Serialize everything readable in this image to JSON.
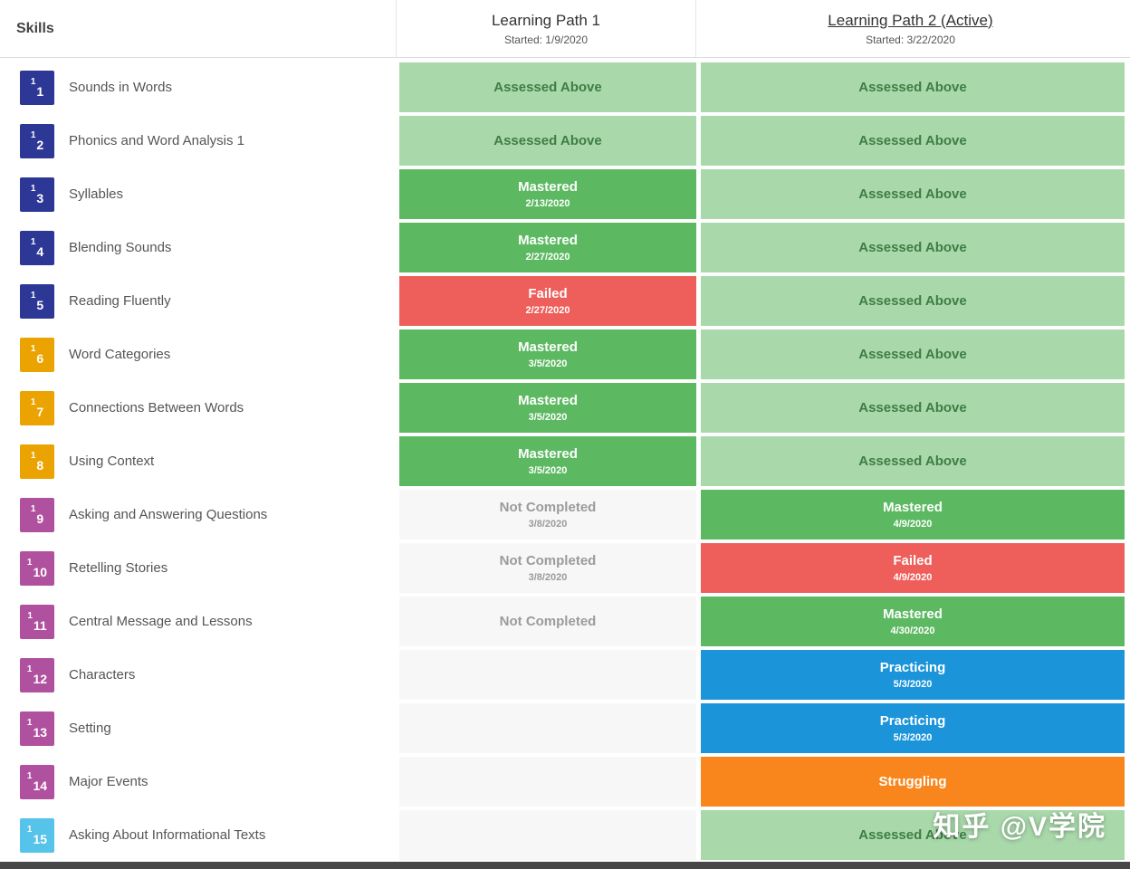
{
  "header": {
    "skills_label": "Skills",
    "path1": {
      "title": "Learning Path 1",
      "started": "Started: 1/9/2020"
    },
    "path2": {
      "title": "Learning Path 2 (Active)",
      "started": "Started: 3/22/2020"
    }
  },
  "status_styles": {
    "assessed": {
      "bg": "#a9d9ab",
      "fg": "#3f7d44"
    },
    "mastered": {
      "bg": "#5cb961",
      "fg": "#ffffff"
    },
    "failed": {
      "bg": "#ee5f5c",
      "fg": "#ffffff"
    },
    "not_completed": {
      "bg": "#f7f7f7",
      "fg": "#9b9b9b"
    },
    "practicing": {
      "bg": "#1b94da",
      "fg": "#ffffff"
    },
    "struggling": {
      "bg": "#f8861c",
      "fg": "#ffffff"
    },
    "empty": {
      "bg": "#f7f7f7",
      "fg": "#9b9b9b"
    }
  },
  "badge_colors": {
    "navy": "#2d3795",
    "gold": "#eaa300",
    "purple": "#b0519f",
    "lightblue": "#56c3ea"
  },
  "rows": [
    {
      "level": "1",
      "number": "1",
      "name": "Sounds in Words",
      "badge_color": "#2d3795",
      "path1": {
        "type": "assessed",
        "label": "Assessed Above",
        "date": ""
      },
      "path2": {
        "type": "assessed",
        "label": "Assessed Above",
        "date": ""
      }
    },
    {
      "level": "1",
      "number": "2",
      "name": "Phonics and Word Analysis 1",
      "badge_color": "#2d3795",
      "path1": {
        "type": "assessed",
        "label": "Assessed Above",
        "date": ""
      },
      "path2": {
        "type": "assessed",
        "label": "Assessed Above",
        "date": ""
      }
    },
    {
      "level": "1",
      "number": "3",
      "name": "Syllables",
      "badge_color": "#2d3795",
      "path1": {
        "type": "mastered",
        "label": "Mastered",
        "date": "2/13/2020"
      },
      "path2": {
        "type": "assessed",
        "label": "Assessed Above",
        "date": ""
      }
    },
    {
      "level": "1",
      "number": "4",
      "name": "Blending Sounds",
      "badge_color": "#2d3795",
      "path1": {
        "type": "mastered",
        "label": "Mastered",
        "date": "2/27/2020"
      },
      "path2": {
        "type": "assessed",
        "label": "Assessed Above",
        "date": ""
      }
    },
    {
      "level": "1",
      "number": "5",
      "name": "Reading Fluently",
      "badge_color": "#2d3795",
      "path1": {
        "type": "failed",
        "label": "Failed",
        "date": "2/27/2020"
      },
      "path2": {
        "type": "assessed",
        "label": "Assessed Above",
        "date": ""
      }
    },
    {
      "level": "1",
      "number": "6",
      "name": "Word Categories",
      "badge_color": "#eaa300",
      "path1": {
        "type": "mastered",
        "label": "Mastered",
        "date": "3/5/2020"
      },
      "path2": {
        "type": "assessed",
        "label": "Assessed Above",
        "date": ""
      }
    },
    {
      "level": "1",
      "number": "7",
      "name": "Connections Between Words",
      "badge_color": "#eaa300",
      "path1": {
        "type": "mastered",
        "label": "Mastered",
        "date": "3/5/2020"
      },
      "path2": {
        "type": "assessed",
        "label": "Assessed Above",
        "date": ""
      }
    },
    {
      "level": "1",
      "number": "8",
      "name": "Using Context",
      "badge_color": "#eaa300",
      "path1": {
        "type": "mastered",
        "label": "Mastered",
        "date": "3/5/2020"
      },
      "path2": {
        "type": "assessed",
        "label": "Assessed Above",
        "date": ""
      }
    },
    {
      "level": "1",
      "number": "9",
      "name": "Asking and Answering Questions",
      "badge_color": "#b0519f",
      "path1": {
        "type": "not_completed",
        "label": "Not Completed",
        "date": "3/8/2020"
      },
      "path2": {
        "type": "mastered",
        "label": "Mastered",
        "date": "4/9/2020"
      }
    },
    {
      "level": "1",
      "number": "10",
      "name": "Retelling Stories",
      "badge_color": "#b0519f",
      "path1": {
        "type": "not_completed",
        "label": "Not Completed",
        "date": "3/8/2020"
      },
      "path2": {
        "type": "failed",
        "label": "Failed",
        "date": "4/9/2020"
      }
    },
    {
      "level": "1",
      "number": "11",
      "name": "Central Message and Lessons",
      "badge_color": "#b0519f",
      "path1": {
        "type": "not_completed",
        "label": "Not Completed",
        "date": ""
      },
      "path2": {
        "type": "mastered",
        "label": "Mastered",
        "date": "4/30/2020"
      }
    },
    {
      "level": "1",
      "number": "12",
      "name": "Characters",
      "badge_color": "#b0519f",
      "path1": {
        "type": "empty",
        "label": "",
        "date": ""
      },
      "path2": {
        "type": "practicing",
        "label": "Practicing",
        "date": "5/3/2020"
      }
    },
    {
      "level": "1",
      "number": "13",
      "name": "Setting",
      "badge_color": "#b0519f",
      "path1": {
        "type": "empty",
        "label": "",
        "date": ""
      },
      "path2": {
        "type": "practicing",
        "label": "Practicing",
        "date": "5/3/2020"
      }
    },
    {
      "level": "1",
      "number": "14",
      "name": "Major Events",
      "badge_color": "#b0519f",
      "path1": {
        "type": "empty",
        "label": "",
        "date": ""
      },
      "path2": {
        "type": "struggling",
        "label": "Struggling",
        "date": ""
      }
    },
    {
      "level": "1",
      "number": "15",
      "name": "Asking About Informational Texts",
      "badge_color": "#56c3ea",
      "path1": {
        "type": "empty",
        "label": "",
        "date": ""
      },
      "path2": {
        "type": "assessed",
        "label": "Assessed Above",
        "date": ""
      }
    }
  ],
  "watermark": {
    "text": "知乎 @V学院"
  }
}
